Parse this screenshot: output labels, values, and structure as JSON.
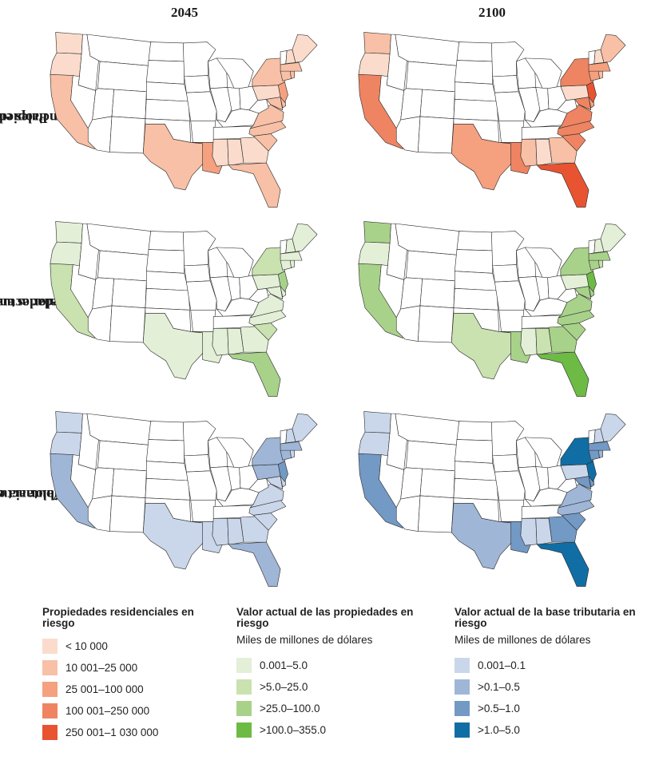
{
  "columns": [
    "2045",
    "2100"
  ],
  "rows": [
    {
      "title_lines": [
        "Propiedades",
        "residenciales en riesgo"
      ]
    },
    {
      "title_lines": [
        "Valor actual de las",
        "propiedades en riesgo"
      ]
    },
    {
      "title_lines": [
        "Valor actual de la",
        "base tributaria en riesgo"
      ]
    }
  ],
  "palettes": {
    "residential": [
      "#fbdccc",
      "#f8c0a6",
      "#f5a07f",
      "#ef8462",
      "#e85332"
    ],
    "value": [
      "#e3efd7",
      "#c9e2b0",
      "#a8d28a",
      "#6dbb45"
    ],
    "tax": [
      "#cad7ea",
      "#9fb6d7",
      "#7399c5",
      "#116ea5"
    ]
  },
  "legends": [
    {
      "title": "Propiedades residenciales en riesgo",
      "subtitle": "",
      "items": [
        {
          "label": "< 10 000",
          "color": "#fbdccc"
        },
        {
          "label": "10 001–25 000",
          "color": "#f8c0a6"
        },
        {
          "label": "25 001–100 000",
          "color": "#f5a07f"
        },
        {
          "label": "100 001–250 000",
          "color": "#ef8462"
        },
        {
          "label": "250 001–1 030 000",
          "color": "#e85332"
        }
      ]
    },
    {
      "title": "Valor actual de las propiedades en riesgo",
      "subtitle": "Miles de millones de dólares",
      "items": [
        {
          "label": "0.001–5.0",
          "color": "#e3efd7"
        },
        {
          "label": ">5.0–25.0",
          "color": "#c9e2b0"
        },
        {
          "label": ">25.0–100.0",
          "color": "#a8d28a"
        },
        {
          "label": ">100.0–355.0",
          "color": "#6dbb45"
        }
      ]
    },
    {
      "title": "Valor actual de la base tributaria en riesgo",
      "subtitle": "Miles de millones de dólares",
      "items": [
        {
          "label": "0.001–0.1",
          "color": "#cad7ea"
        },
        {
          "label": ">0.1–0.5",
          "color": "#9fb6d7"
        },
        {
          "label": ">0.5–1.0",
          "color": "#7399c5"
        },
        {
          "label": ">1.0–5.0",
          "color": "#116ea5"
        }
      ]
    }
  ],
  "map_data": {
    "residential": {
      "2045": {
        "WA": 1,
        "OR": 1,
        "CA": 2,
        "TX": 2,
        "LA": 3,
        "MS": 1,
        "AL": 1,
        "GA": 1,
        "FL": 2,
        "SC": 2,
        "NC": 2,
        "VA": 2,
        "MD": 2,
        "DE": 2,
        "NJ": 3,
        "PA": 1,
        "NY": 2,
        "CT": 2,
        "RI": 2,
        "MA": 2,
        "NH": 1,
        "ME": 1
      },
      "2100": {
        "WA": 2,
        "OR": 1,
        "CA": 4,
        "TX": 3,
        "LA": 4,
        "MS": 2,
        "AL": 1,
        "GA": 2,
        "FL": 5,
        "SC": 4,
        "NC": 4,
        "VA": 4,
        "MD": 4,
        "DE": 3,
        "NJ": 5,
        "PA": 1,
        "NY": 4,
        "CT": 3,
        "RI": 2,
        "MA": 3,
        "NH": 1,
        "ME": 2
      }
    },
    "value": {
      "2045": {
        "WA": 1,
        "OR": 1,
        "CA": 2,
        "TX": 1,
        "LA": 1,
        "MS": 1,
        "AL": 1,
        "GA": 1,
        "FL": 3,
        "SC": 2,
        "NC": 1,
        "VA": 1,
        "MD": 1,
        "DE": 1,
        "NJ": 3,
        "PA": 1,
        "NY": 2,
        "CT": 1,
        "RI": 1,
        "MA": 1,
        "NH": 1,
        "ME": 1
      },
      "2100": {
        "WA": 3,
        "OR": 1,
        "CA": 3,
        "TX": 2,
        "LA": 3,
        "MS": 1,
        "AL": 2,
        "GA": 3,
        "FL": 4,
        "SC": 3,
        "NC": 3,
        "VA": 3,
        "MD": 3,
        "DE": 3,
        "NJ": 4,
        "PA": 1,
        "NY": 3,
        "CT": 3,
        "RI": 2,
        "MA": 3,
        "NH": 1,
        "ME": 1
      }
    },
    "tax": {
      "2045": {
        "WA": 1,
        "OR": 1,
        "CA": 2,
        "TX": 1,
        "LA": 1,
        "MS": 1,
        "AL": 1,
        "GA": 1,
        "FL": 2,
        "SC": 1,
        "NC": 1,
        "VA": 1,
        "MD": 1,
        "DE": 1,
        "NJ": 3,
        "PA": 2,
        "NY": 2,
        "CT": 2,
        "RI": 1,
        "MA": 2,
        "NH": 1,
        "ME": 1
      },
      "2100": {
        "WA": 1,
        "OR": 1,
        "CA": 3,
        "TX": 2,
        "LA": 3,
        "MS": 1,
        "AL": 1,
        "GA": 3,
        "FL": 4,
        "SC": 3,
        "NC": 2,
        "VA": 2,
        "MD": 3,
        "DE": 3,
        "NJ": 4,
        "PA": 1,
        "NY": 4,
        "CT": 3,
        "RI": 2,
        "MA": 3,
        "NH": 1,
        "ME": 1
      }
    }
  }
}
